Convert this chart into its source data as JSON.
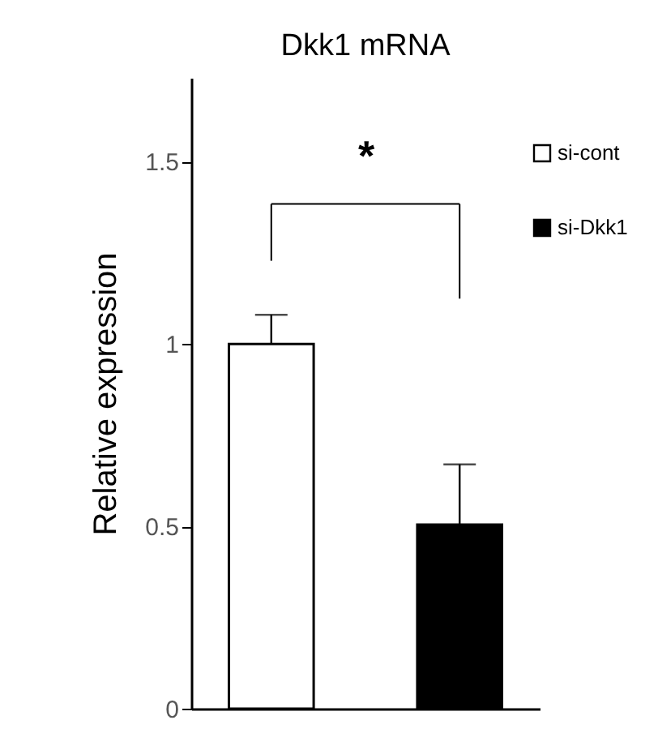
{
  "chart_data": {
    "type": "bar",
    "title": "Dkk1 mRNA",
    "ylabel": "Relative expression",
    "categories": [
      null,
      null
    ],
    "series": [
      {
        "name": "si-cont",
        "color": "#ffffff",
        "values": [
          1.0,
          null
        ],
        "errors": [
          0.08,
          null
        ]
      },
      {
        "name": "si-Dkk1",
        "color": "#000000",
        "values": [
          null,
          0.505
        ],
        "errors": [
          null,
          0.165
        ]
      }
    ],
    "ylim": [
      0,
      1.73
    ],
    "yticks": [
      0,
      0.5,
      1,
      1.5
    ],
    "grid": false,
    "legend": "top right",
    "tick_labels": "y",
    "annotations": [
      "*"
    ]
  }
}
